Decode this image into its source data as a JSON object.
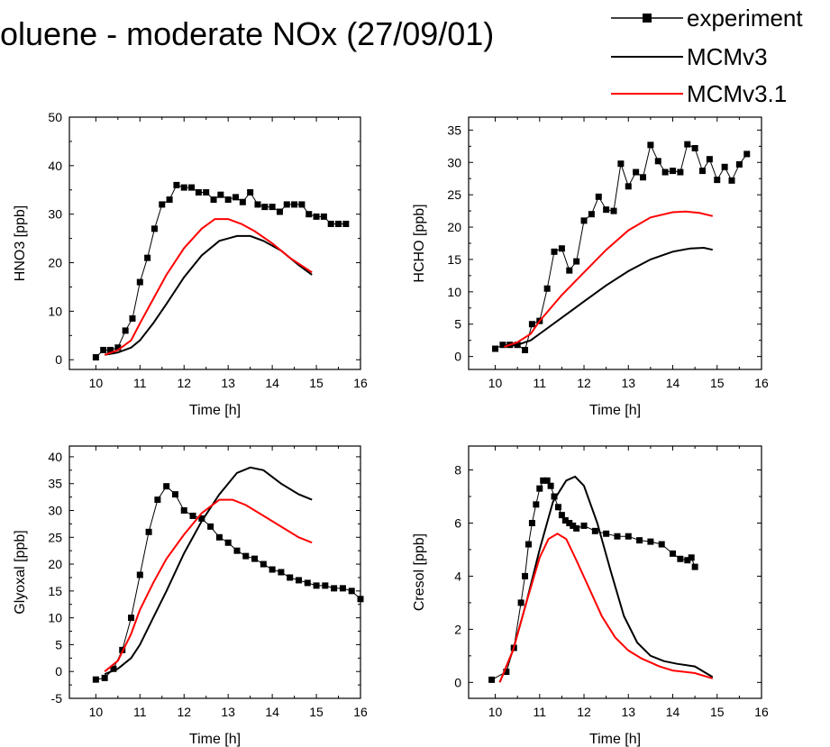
{
  "title": "oluene - moderate NOx (27/09/01)",
  "legend": [
    {
      "label": "experiment",
      "color": "#000000",
      "marker": "square"
    },
    {
      "label": "MCMv3",
      "color": "#000000",
      "marker": "none"
    },
    {
      "label": "MCMv3.1",
      "color": "#ff0000",
      "marker": "none"
    }
  ],
  "chart_data": [
    {
      "type": "line",
      "xlabel": "Time [h]",
      "ylabel": "HNO3 [ppb]",
      "xlim": [
        9.4,
        16
      ],
      "ylim": [
        -2,
        50
      ],
      "xticks": [
        10,
        11,
        12,
        13,
        14,
        15,
        16
      ],
      "yticks": [
        0,
        10,
        20,
        30,
        40,
        50
      ],
      "series": [
        {
          "name": "experiment",
          "color": "#000000",
          "marker": "square",
          "x": [
            10.0,
            10.17,
            10.33,
            10.5,
            10.67,
            10.83,
            11.0,
            11.17,
            11.33,
            11.5,
            11.67,
            11.83,
            12.0,
            12.17,
            12.33,
            12.5,
            12.67,
            12.83,
            13.0,
            13.17,
            13.33,
            13.5,
            13.67,
            13.83,
            14.0,
            14.17,
            14.33,
            14.5,
            14.67,
            14.83,
            15.0,
            15.17,
            15.33,
            15.5,
            15.67
          ],
          "y": [
            0.5,
            2,
            2,
            2.5,
            6,
            8.5,
            16,
            21,
            27,
            32,
            33,
            36,
            35.5,
            35.5,
            34.5,
            34.5,
            33,
            34,
            33,
            33.5,
            32.5,
            34.5,
            32,
            31.5,
            31.5,
            30.5,
            32,
            32,
            32,
            30,
            29.5,
            29.5,
            28,
            28,
            28
          ]
        },
        {
          "name": "MCMv3",
          "color": "#000000",
          "marker": "none",
          "x": [
            10.2,
            10.5,
            10.8,
            11.0,
            11.3,
            11.6,
            12.0,
            12.4,
            12.8,
            13.2,
            13.5,
            13.8,
            14.2,
            14.6,
            14.9
          ],
          "y": [
            1,
            1.5,
            2.5,
            4,
            7.5,
            11.5,
            17,
            21.5,
            24.5,
            25.5,
            25.5,
            24.5,
            22.5,
            19.5,
            17.5
          ]
        },
        {
          "name": "MCMv3.1",
          "color": "#ff0000",
          "marker": "none",
          "x": [
            10.2,
            10.5,
            10.8,
            11.0,
            11.3,
            11.6,
            12.0,
            12.4,
            12.7,
            13.0,
            13.3,
            13.6,
            14.0,
            14.4,
            14.9
          ],
          "y": [
            1,
            2,
            4,
            7.5,
            12.5,
            17.5,
            23,
            27,
            29,
            29,
            28,
            26.5,
            24,
            21,
            18
          ]
        }
      ]
    },
    {
      "type": "line",
      "xlabel": "Time [h]",
      "ylabel": "HCHO [ppb]",
      "xlim": [
        9.4,
        16
      ],
      "ylim": [
        -2,
        37
      ],
      "xticks": [
        10,
        11,
        12,
        13,
        14,
        15,
        16
      ],
      "yticks": [
        0,
        5,
        10,
        15,
        20,
        25,
        30,
        35
      ],
      "series": [
        {
          "name": "experiment",
          "color": "#000000",
          "marker": "square",
          "x": [
            10.0,
            10.17,
            10.33,
            10.5,
            10.67,
            10.83,
            11.0,
            11.17,
            11.33,
            11.5,
            11.67,
            11.83,
            12.0,
            12.17,
            12.33,
            12.5,
            12.67,
            12.83,
            13.0,
            13.17,
            13.33,
            13.5,
            13.67,
            13.83,
            14.0,
            14.17,
            14.33,
            14.5,
            14.67,
            14.83,
            15.0,
            15.17,
            15.33,
            15.5,
            15.67
          ],
          "y": [
            1.2,
            1.8,
            1.8,
            1.8,
            1.0,
            5.0,
            5.5,
            10.5,
            16.2,
            16.7,
            13.3,
            14.7,
            21.0,
            22.0,
            24.7,
            22.7,
            22.5,
            29.8,
            26.3,
            28.5,
            27.7,
            32.7,
            30.2,
            28.5,
            28.7,
            28.5,
            32.8,
            32.2,
            28.7,
            30.5,
            27.3,
            29.3,
            27.2,
            29.7,
            31.3
          ]
        },
        {
          "name": "MCMv3",
          "color": "#000000",
          "marker": "none",
          "x": [
            10.2,
            10.5,
            10.8,
            11.0,
            11.5,
            12.0,
            12.5,
            13.0,
            13.5,
            14.0,
            14.4,
            14.7,
            14.9
          ],
          "y": [
            1.5,
            1.8,
            2.5,
            3.5,
            6,
            8.5,
            11,
            13.2,
            15,
            16.2,
            16.7,
            16.8,
            16.5
          ]
        },
        {
          "name": "MCMv3.1",
          "color": "#ff0000",
          "marker": "none",
          "x": [
            10.2,
            10.5,
            10.8,
            11.0,
            11.5,
            12.0,
            12.5,
            13.0,
            13.5,
            14.0,
            14.3,
            14.6,
            14.9
          ],
          "y": [
            1.5,
            2.2,
            3.5,
            5.5,
            9.5,
            13,
            16.5,
            19.5,
            21.5,
            22.3,
            22.4,
            22.2,
            21.7
          ]
        }
      ]
    },
    {
      "type": "line",
      "xlabel": "Time [h]",
      "ylabel": "Glyoxal [ppb]",
      "xlim": [
        9.4,
        16
      ],
      "ylim": [
        -5,
        42
      ],
      "xticks": [
        10,
        11,
        12,
        13,
        14,
        15,
        16
      ],
      "yticks": [
        -5,
        0,
        5,
        10,
        15,
        20,
        25,
        30,
        35,
        40
      ],
      "series": [
        {
          "name": "experiment",
          "color": "#000000",
          "marker": "square",
          "x": [
            10.0,
            10.2,
            10.4,
            10.6,
            10.8,
            11.0,
            11.2,
            11.4,
            11.6,
            11.8,
            12.0,
            12.2,
            12.4,
            12.6,
            12.8,
            13.0,
            13.2,
            13.4,
            13.6,
            13.8,
            14.0,
            14.2,
            14.4,
            14.6,
            14.8,
            15.0,
            15.2,
            15.4,
            15.6,
            15.8,
            16.0
          ],
          "y": [
            -1.5,
            -1.2,
            0.5,
            4,
            10,
            18,
            26,
            32,
            34.5,
            33,
            30,
            29,
            28.5,
            27,
            25,
            24,
            22.5,
            21.5,
            21,
            20,
            19,
            18.5,
            17.5,
            17,
            16.5,
            16,
            16,
            15.5,
            15.5,
            15,
            13.5
          ]
        },
        {
          "name": "MCMv3",
          "color": "#000000",
          "marker": "none",
          "x": [
            10.2,
            10.5,
            10.8,
            11.0,
            11.3,
            11.6,
            12.0,
            12.4,
            12.8,
            13.2,
            13.5,
            13.8,
            14.2,
            14.6,
            14.9
          ],
          "y": [
            -0.5,
            0.5,
            2.5,
            5,
            10,
            15,
            22,
            28,
            33,
            37,
            38,
            37.5,
            35,
            33,
            32
          ]
        },
        {
          "name": "MCMv3.1",
          "color": "#ff0000",
          "marker": "none",
          "x": [
            10.2,
            10.5,
            10.8,
            11.0,
            11.3,
            11.6,
            12.0,
            12.4,
            12.8,
            13.1,
            13.4,
            13.8,
            14.2,
            14.6,
            14.9
          ],
          "y": [
            0,
            2,
            7,
            11.5,
            16.5,
            21,
            25.5,
            29.5,
            32,
            32,
            31,
            29,
            27,
            25,
            24
          ]
        }
      ]
    },
    {
      "type": "line",
      "xlabel": "Time [h]",
      "ylabel": "Cresol [ppb]",
      "xlim": [
        9.4,
        16
      ],
      "ylim": [
        -0.6,
        8.9
      ],
      "xticks": [
        10,
        11,
        12,
        13,
        14,
        15,
        16
      ],
      "yticks": [
        0,
        2,
        4,
        6,
        8
      ],
      "series": [
        {
          "name": "experiment",
          "color": "#000000",
          "marker": "square",
          "x": [
            9.92,
            10.25,
            10.42,
            10.58,
            10.67,
            10.75,
            10.83,
            10.92,
            11.0,
            11.08,
            11.17,
            11.25,
            11.33,
            11.42,
            11.5,
            11.58,
            11.67,
            11.75,
            11.83,
            12.0,
            12.25,
            12.5,
            12.75,
            13.0,
            13.25,
            13.5,
            13.75,
            14.0,
            14.17,
            14.33,
            14.42,
            14.5
          ],
          "y": [
            0.1,
            0.4,
            1.3,
            3.0,
            4.0,
            5.2,
            6.0,
            6.7,
            7.3,
            7.6,
            7.6,
            7.4,
            7.0,
            6.6,
            6.3,
            6.1,
            6.0,
            5.9,
            5.8,
            5.9,
            5.7,
            5.6,
            5.5,
            5.5,
            5.35,
            5.3,
            5.2,
            4.85,
            4.65,
            4.6,
            4.7,
            4.35
          ]
        },
        {
          "name": "MCMv3",
          "color": "#000000",
          "marker": "none",
          "x": [
            10.1,
            10.4,
            10.7,
            11.0,
            11.3,
            11.6,
            11.8,
            12.0,
            12.3,
            12.6,
            12.9,
            13.2,
            13.5,
            13.8,
            14.1,
            14.5,
            14.9
          ],
          "y": [
            0,
            1.2,
            3.0,
            5.0,
            6.8,
            7.6,
            7.75,
            7.4,
            6.0,
            4.2,
            2.5,
            1.5,
            1.0,
            0.8,
            0.7,
            0.6,
            0.2
          ]
        },
        {
          "name": "MCMv3.1",
          "color": "#ff0000",
          "marker": "none",
          "x": [
            10.1,
            10.4,
            10.7,
            11.0,
            11.2,
            11.4,
            11.6,
            11.8,
            12.1,
            12.4,
            12.7,
            13.0,
            13.3,
            13.7,
            14.0,
            14.5,
            14.9
          ],
          "y": [
            0,
            1.2,
            3.0,
            4.7,
            5.4,
            5.6,
            5.4,
            4.7,
            3.6,
            2.5,
            1.7,
            1.2,
            0.9,
            0.6,
            0.45,
            0.35,
            0.15
          ]
        }
      ]
    }
  ]
}
